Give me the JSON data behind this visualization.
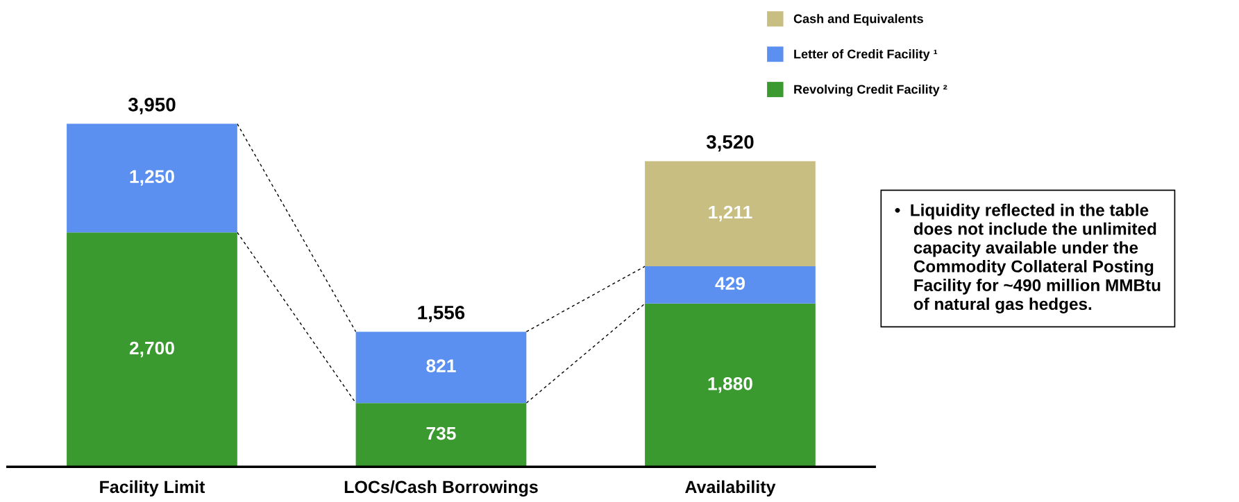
{
  "chart_data": {
    "type": "bar",
    "stacked": true,
    "legend": "top right",
    "grid": false,
    "categories": [
      "Facility Limit",
      "LOCs/Cash Borrowings",
      "Availability"
    ],
    "series": [
      {
        "name": "Revolving Credit Facility ²",
        "color": "#3a9a30",
        "values": [
          2700,
          735,
          1880
        ],
        "value_labels": [
          "2,700",
          "735",
          "1,880"
        ]
      },
      {
        "name": "Letter of Credit Facility ¹",
        "color": "#5b8ff0",
        "values": [
          1250,
          821,
          429
        ],
        "value_labels": [
          "1,250",
          "821",
          "429"
        ]
      },
      {
        "name": "Cash and Equivalents",
        "color": "#c8be82",
        "values": [
          null,
          null,
          1211
        ],
        "value_labels": [
          null,
          null,
          "1,211"
        ]
      }
    ],
    "totals": [
      "3,950",
      "1,556",
      "3,520"
    ],
    "annotations": [
      "•  Liquidity reflected in the table\n    does not include the unlimited\n    capacity available under the\n    Commodity Collateral Posting\n    Facility for ~490 million MMBtu\n    of natural gas hedges."
    ]
  }
}
